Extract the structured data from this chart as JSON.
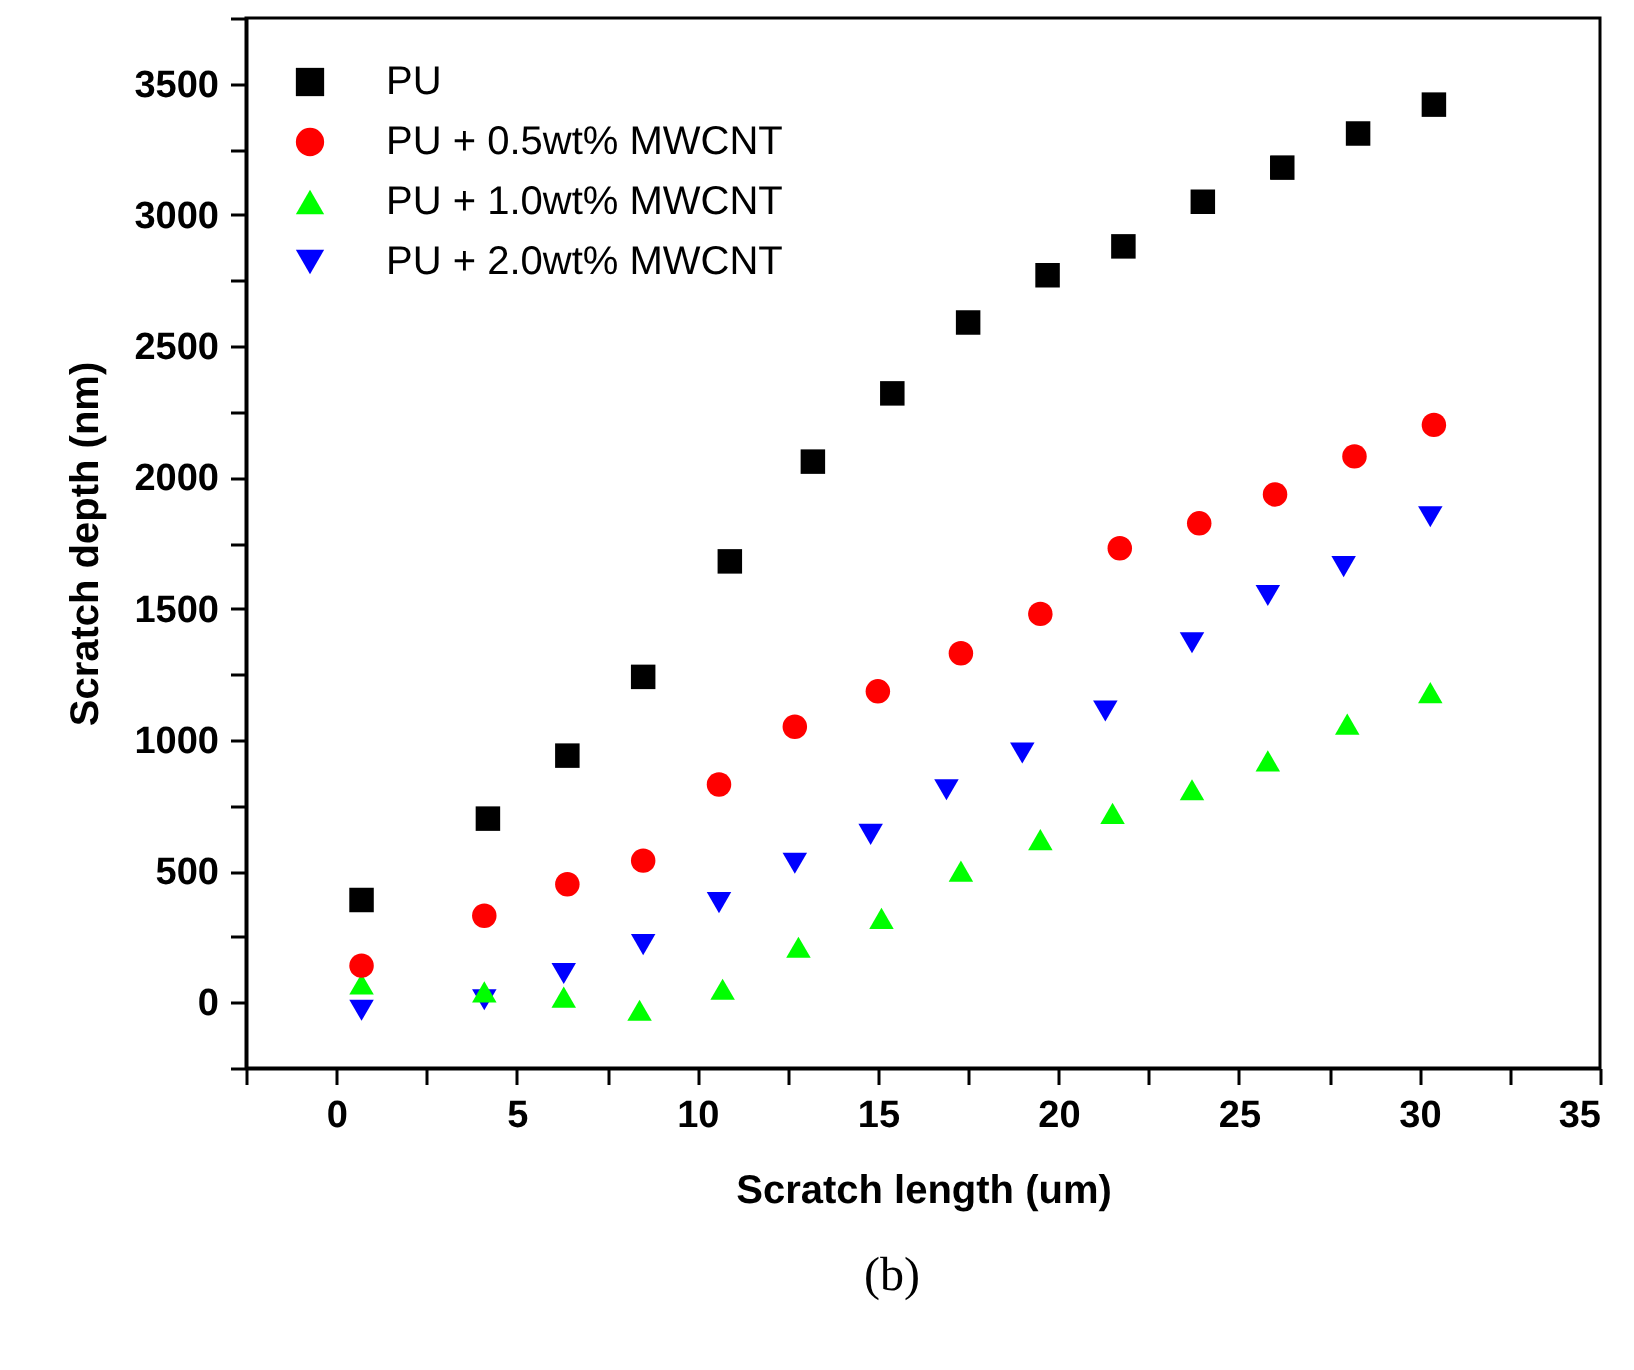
{
  "chart_data": {
    "type": "scatter",
    "xlabel": "Scratch length (um)",
    "ylabel": "Scratch depth (nm)",
    "annotations": [
      "(b)"
    ],
    "legend": "top left",
    "grid": false,
    "xlim": [
      -2.5,
      35
    ],
    "xticks": [
      {
        "value": -2.5,
        "label": null
      },
      0,
      {
        "value": 2.5,
        "label": null
      },
      5,
      {
        "value": 7.5,
        "label": null
      },
      10,
      {
        "value": 12.5,
        "label": null
      },
      15,
      {
        "value": 17.5,
        "label": null
      },
      20,
      {
        "value": 22.5,
        "label": null
      },
      25,
      {
        "value": 27.5,
        "label": null
      },
      30,
      {
        "value": 32.5,
        "label": null
      },
      35
    ],
    "ylim": [
      -250,
      3750
    ],
    "yticks": [
      {
        "value": -250,
        "label": null
      },
      0,
      {
        "value": 250,
        "label": null
      },
      500,
      {
        "value": 750,
        "label": null
      },
      1000,
      {
        "value": 1250,
        "label": null
      },
      1500,
      {
        "value": 1750,
        "label": null
      },
      2000,
      {
        "value": 2250,
        "label": null
      },
      2500,
      {
        "value": 2750,
        "label": null
      },
      3000,
      {
        "value": 3250,
        "label": null
      },
      3500,
      {
        "value": 3750,
        "label": null
      }
    ],
    "series": [
      {
        "name": "PU",
        "color": "#000000",
        "marker": "square",
        "x": [
          0.7,
          4.2,
          6.4,
          8.5,
          10.9,
          13.2,
          15.4,
          17.5,
          19.7,
          21.8,
          24.0,
          26.2,
          28.3,
          30.4
        ],
        "values": [
          390,
          700,
          940,
          1240,
          1680,
          2060,
          2320,
          2590,
          2770,
          2880,
          3050,
          3180,
          3310,
          3420
        ]
      },
      {
        "name": "PU + 0.5wt% MWCNT",
        "color": "#ff0000",
        "marker": "circle",
        "x": [
          0.7,
          4.1,
          6.4,
          8.5,
          10.6,
          12.7,
          15.0,
          17.3,
          19.5,
          21.7,
          23.9,
          26.0,
          28.2,
          30.4
        ],
        "values": [
          140,
          330,
          450,
          540,
          830,
          1050,
          1185,
          1330,
          1480,
          1730,
          1825,
          1935,
          2080,
          2200
        ]
      },
      {
        "name": "PU + 1.0wt% MWCNT",
        "color": "#00ff00",
        "marker": "triangle",
        "x": [
          0.7,
          4.1,
          6.3,
          8.4,
          10.7,
          12.8,
          15.1,
          17.3,
          19.5,
          21.5,
          23.7,
          25.8,
          28.0,
          30.3
        ],
        "values": [
          70,
          40,
          20,
          -30,
          50,
          210,
          320,
          500,
          620,
          720,
          810,
          920,
          1060,
          1180
        ]
      },
      {
        "name": "PU + 2.0wt% MWCNT",
        "color": "#0000ff",
        "marker": "triangle-down",
        "x": [
          0.7,
          4.1,
          6.3,
          8.5,
          10.6,
          12.7,
          14.8,
          16.9,
          19.0,
          21.3,
          23.7,
          25.8,
          27.9,
          30.3
        ],
        "values": [
          -30,
          10,
          110,
          220,
          380,
          530,
          640,
          810,
          950,
          1110,
          1370,
          1550,
          1660,
          1850
        ]
      }
    ]
  }
}
